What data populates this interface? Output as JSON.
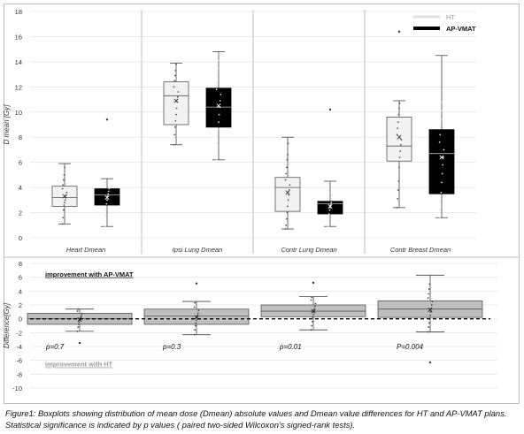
{
  "chart_data": [
    {
      "type": "box",
      "ylabel": "D mean [Gy]",
      "ylim": [
        0,
        18
      ],
      "yticks": [
        0,
        2,
        4,
        6,
        8,
        10,
        12,
        14,
        16,
        18
      ],
      "categories": [
        "Heart Dmean",
        "Ipsi Lung Dmean",
        "Contr Lung Dmean",
        "Contr Breast Dmean"
      ],
      "legend": {
        "position": "top-right",
        "items": [
          {
            "name": "HT",
            "color": "#f2f2f2"
          },
          {
            "name": "AP-VMAT",
            "color": "#000000"
          }
        ]
      },
      "series": [
        {
          "name": "HT",
          "color": "#f2f2f2",
          "boxes": [
            {
              "min": 1.1,
              "q1": 2.5,
              "median": 3.2,
              "mean": 3.3,
              "q3": 4.1,
              "max": 5.9,
              "points": [
                1.1,
                1.6,
                2.2,
                2.6,
                2.8,
                3.0,
                3.2,
                3.4,
                3.6,
                3.9,
                4.2,
                4.6,
                5.0,
                5.6
              ]
            },
            {
              "min": 7.4,
              "q1": 9.0,
              "median": 11.3,
              "mean": 10.9,
              "q3": 12.4,
              "max": 13.9,
              "points": [
                7.4,
                8.2,
                8.8,
                9.3,
                9.8,
                10.3,
                10.8,
                11.2,
                11.6,
                12.0,
                12.5,
                12.9,
                13.3,
                13.8
              ]
            },
            {
              "min": 0.7,
              "q1": 2.1,
              "median": 4.0,
              "mean": 3.6,
              "q3": 4.8,
              "max": 8.0,
              "points": [
                0.7,
                1.0,
                1.5,
                2.0,
                2.5,
                3.0,
                3.4,
                3.8,
                4.2,
                4.6,
                5.1,
                5.6,
                6.2,
                6.6,
                7.5
              ]
            },
            {
              "min": 2.4,
              "q1": 6.1,
              "median": 7.3,
              "mean": 8.0,
              "q3": 9.6,
              "max": 10.9,
              "outliers": [
                16.4
              ],
              "points": [
                2.4,
                3.1,
                3.8,
                4.5,
                5.6,
                6.4,
                6.9,
                7.4,
                7.8,
                8.2,
                8.7,
                9.2,
                9.8,
                10.3,
                10.7
              ]
            }
          ]
        },
        {
          "name": "AP-VMAT",
          "color": "#000000",
          "boxes": [
            {
              "min": 0.9,
              "q1": 2.6,
              "median": 3.4,
              "mean": 3.2,
              "q3": 3.9,
              "max": 4.7,
              "outliers": [
                9.4
              ],
              "points": [
                0.9,
                1.8,
                2.2,
                2.7,
                3.0,
                3.3,
                3.5,
                3.7,
                3.9,
                4.2,
                4.4
              ]
            },
            {
              "min": 6.2,
              "q1": 8.8,
              "median": 10.4,
              "mean": 10.5,
              "q3": 11.9,
              "max": 14.8,
              "points": [
                6.2,
                7.5,
                8.1,
                8.6,
                9.2,
                9.8,
                10.4,
                10.9,
                11.4,
                11.8,
                12.3,
                12.9,
                13.5,
                14.1,
                14.6
              ]
            },
            {
              "min": 0.9,
              "q1": 1.9,
              "median": 2.7,
              "mean": 2.5,
              "q3": 2.9,
              "max": 4.5,
              "outliers": [
                10.2
              ],
              "points": [
                0.9,
                1.3,
                1.9,
                2.2,
                2.4,
                2.6,
                2.8,
                3.0,
                3.4,
                3.8,
                4.3
              ]
            },
            {
              "min": 1.6,
              "q1": 3.5,
              "median": 6.7,
              "mean": 6.4,
              "q3": 8.6,
              "max": 14.5,
              "points": [
                1.6,
                2.2,
                2.9,
                3.6,
                4.4,
                5.1,
                5.8,
                6.4,
                7.0,
                7.6,
                8.2,
                8.8,
                9.4,
                10.1,
                10.8
              ]
            }
          ]
        }
      ]
    },
    {
      "type": "box",
      "ylabel": "Difference[Gy]",
      "ylim": [
        -10,
        8
      ],
      "yticks": [
        -10,
        -8,
        -6,
        -4,
        -2,
        0,
        2,
        4,
        6,
        8
      ],
      "reference_line": 0,
      "annotations": [
        "improvement with AP-VMAT",
        "improvement with HT"
      ],
      "color": "#bfbfbf",
      "p_values": [
        "p=0.7",
        "p=0.3",
        "p=0.01",
        "P=0.004"
      ],
      "boxes": [
        {
          "min": -1.8,
          "q1": -0.8,
          "median": 0.0,
          "mean": -0.1,
          "q3": 0.8,
          "max": 1.4,
          "outliers": [
            -3.5
          ],
          "points": [
            -1.8,
            -1.2,
            -0.8,
            -0.5,
            -0.2,
            0.0,
            0.2,
            0.4,
            0.7,
            1.1,
            1.4
          ]
        },
        {
          "min": -2.3,
          "q1": -0.8,
          "median": 0.4,
          "mean": 0.2,
          "q3": 1.4,
          "max": 2.5,
          "outliers": [
            5.1
          ],
          "points": [
            -2.3,
            -1.6,
            -1.0,
            -0.6,
            -0.2,
            0.2,
            0.5,
            0.8,
            1.2,
            1.7,
            2.3
          ]
        },
        {
          "min": -1.6,
          "q1": 0.3,
          "median": 1.1,
          "mean": 1.1,
          "q3": 2.0,
          "max": 3.2,
          "outliers": [
            5.2
          ],
          "points": [
            -1.6,
            -1.0,
            -0.4,
            0.2,
            0.6,
            1.0,
            1.4,
            1.8,
            2.2,
            2.7,
            3.1
          ]
        },
        {
          "min": -1.9,
          "q1": 0.2,
          "median": 1.4,
          "mean": 1.3,
          "q3": 2.6,
          "max": 6.3,
          "outliers": [
            -6.3
          ],
          "points": [
            -1.9,
            -1.2,
            -0.6,
            0.0,
            0.5,
            1.0,
            1.5,
            2.0,
            2.5,
            3.0,
            3.6,
            4.3,
            5.0
          ]
        }
      ]
    }
  ],
  "caption": "Figure1: Boxplots showing distribution of mean dose (Dmean) absolute values and Dmean value differences for HT and AP-VMAT plans. Statistical significance is indicated by p values ( paired two-sided Wilcoxon's signed-rank tests)."
}
